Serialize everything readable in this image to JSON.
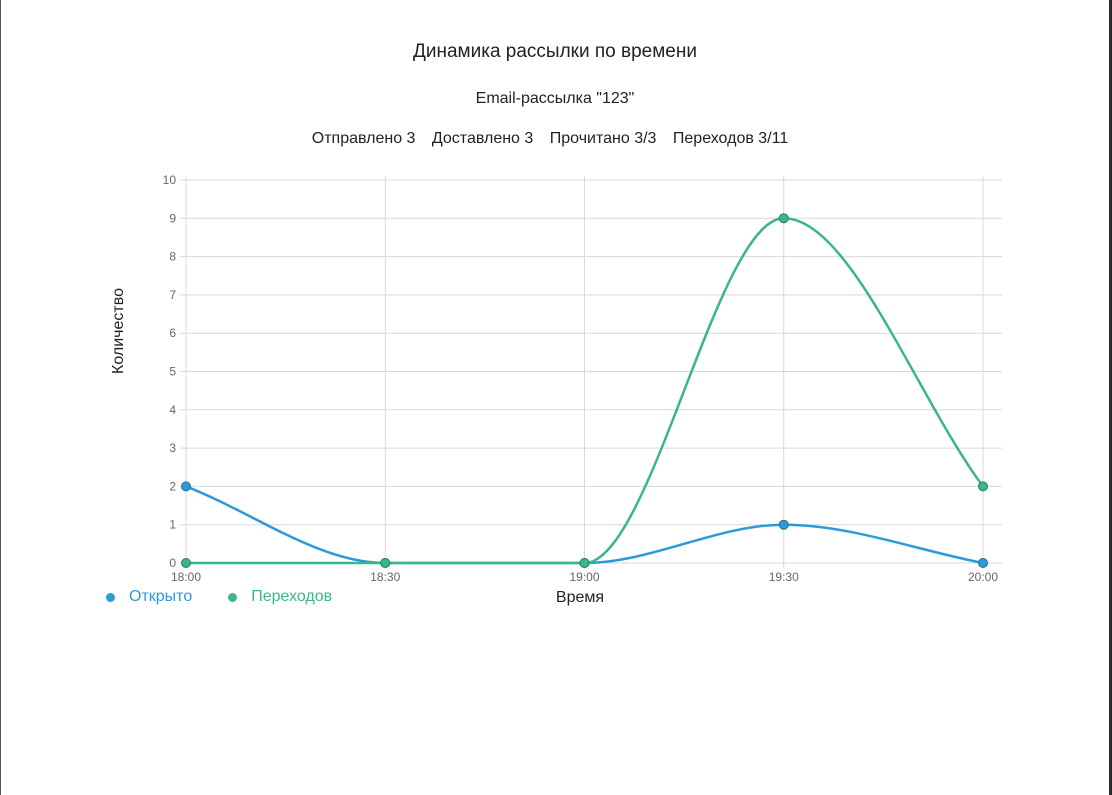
{
  "header": {
    "title": "Динамика рассылки по времени",
    "subtitle": "Email-рассылка \"123\""
  },
  "stats": [
    "Отправлено 3",
    "Доставлено 3",
    "Прочитано 3/3",
    "Переходов 3/11"
  ],
  "chart_data": {
    "type": "line",
    "x": [
      "18:00",
      "18:30",
      "19:00",
      "19:30",
      "20:00"
    ],
    "series": [
      {
        "name": "Открыто",
        "color": "#2d9ad8",
        "values": [
          2,
          0,
          0,
          1,
          0
        ]
      },
      {
        "name": "Переходов",
        "color": "#3bb58a",
        "values": [
          0,
          0,
          0,
          9,
          2
        ]
      }
    ],
    "yticks": [
      0,
      1,
      2,
      3,
      4,
      5,
      6,
      7,
      8,
      9,
      10
    ],
    "ylim": [
      0,
      10
    ],
    "xlabel": "Время",
    "ylabel": "Количество",
    "grid": true,
    "smooth": true,
    "legend_position": "bottom-left"
  },
  "colors": {
    "grid": "#d9d9d9",
    "marker_stroke_open": "#1f6fa3",
    "marker_stroke_clicks": "#2a7f60"
  }
}
